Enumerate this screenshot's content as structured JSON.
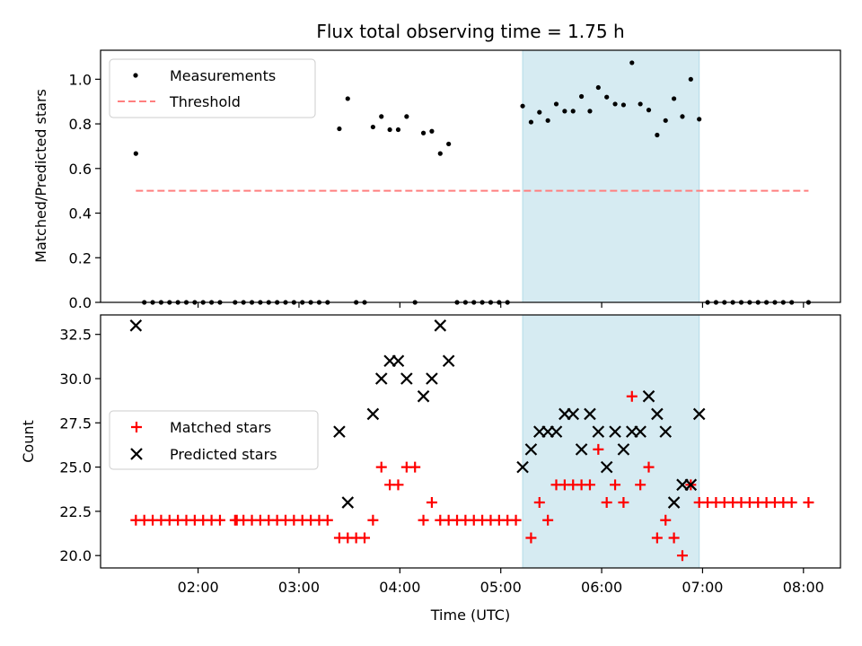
{
  "chart_data": {
    "type": "scatter",
    "title": "Flux total observing time = 1.75 h",
    "xlabel": "Time (UTC)",
    "xlim": [
      "01:02",
      "08:22"
    ],
    "x_ticks": [
      "02:00",
      "03:00",
      "04:00",
      "05:00",
      "06:00",
      "07:00",
      "08:00"
    ],
    "shaded_interval": {
      "start": "05:13",
      "end": "06:58",
      "color": "#add8e6"
    },
    "panels": [
      {
        "ylabel": "Matched/Predicted stars",
        "ylim": [
          0,
          1.13
        ],
        "y_ticks": [
          "0.0",
          "0.2",
          "0.4",
          "0.6",
          "0.8",
          "1.0"
        ],
        "legend_position": "top-left",
        "series": [
          {
            "name": "Measurements",
            "marker": "dot",
            "color": "#000000",
            "points": [
              [
                "01:23",
                0.667
              ],
              [
                "01:28",
                0
              ],
              [
                "01:33",
                0
              ],
              [
                "01:38",
                0
              ],
              [
                "01:43",
                0
              ],
              [
                "01:48",
                0
              ],
              [
                "01:53",
                0
              ],
              [
                "01:58",
                0
              ],
              [
                "02:03",
                0
              ],
              [
                "02:08",
                0
              ],
              [
                "02:13",
                0
              ],
              [
                "02:22",
                0
              ],
              [
                "02:27",
                0
              ],
              [
                "02:32",
                0
              ],
              [
                "02:37",
                0
              ],
              [
                "02:42",
                0
              ],
              [
                "02:47",
                0
              ],
              [
                "02:52",
                0
              ],
              [
                "02:57",
                0
              ],
              [
                "03:02",
                0
              ],
              [
                "03:07",
                0
              ],
              [
                "03:12",
                0
              ],
              [
                "03:17",
                0
              ],
              [
                "03:24",
                0.778
              ],
              [
                "03:29",
                0.913
              ],
              [
                "03:34",
                0
              ],
              [
                "03:39",
                0
              ],
              [
                "03:44",
                0.786
              ],
              [
                "03:49",
                0.833
              ],
              [
                "03:54",
                0.774
              ],
              [
                "03:59",
                0.774
              ],
              [
                "04:04",
                0.833
              ],
              [
                "04:09",
                0
              ],
              [
                "04:14",
                0.759
              ],
              [
                "04:19",
                0.767
              ],
              [
                "04:24",
                0.667
              ],
              [
                "04:29",
                0.71
              ],
              [
                "04:34",
                0
              ],
              [
                "04:39",
                0
              ],
              [
                "04:44",
                0
              ],
              [
                "04:49",
                0
              ],
              [
                "04:54",
                0
              ],
              [
                "04:59",
                0
              ],
              [
                "05:04",
                0
              ],
              [
                "05:13",
                0.88
              ],
              [
                "05:18",
                0.808
              ],
              [
                "05:23",
                0.852
              ],
              [
                "05:28",
                0.815
              ],
              [
                "05:33",
                0.889
              ],
              [
                "05:38",
                0.857
              ],
              [
                "05:43",
                0.857
              ],
              [
                "05:48",
                0.923
              ],
              [
                "05:53",
                0.857
              ],
              [
                "05:58",
                0.963
              ],
              [
                "06:03",
                0.92
              ],
              [
                "06:08",
                0.889
              ],
              [
                "06:13",
                0.885
              ],
              [
                "06:18",
                1.074
              ],
              [
                "06:23",
                0.889
              ],
              [
                "06:28",
                0.862
              ],
              [
                "06:33",
                0.75
              ],
              [
                "06:38",
                0.815
              ],
              [
                "06:43",
                0.913
              ],
              [
                "06:48",
                0.833
              ],
              [
                "06:53",
                1.0
              ],
              [
                "06:58",
                0.821
              ],
              [
                "07:03",
                0
              ],
              [
                "07:08",
                0
              ],
              [
                "07:13",
                0
              ],
              [
                "07:18",
                0
              ],
              [
                "07:23",
                0
              ],
              [
                "07:28",
                0
              ],
              [
                "07:33",
                0
              ],
              [
                "07:38",
                0
              ],
              [
                "07:43",
                0
              ],
              [
                "07:48",
                0
              ],
              [
                "07:53",
                0
              ],
              [
                "08:03",
                0
              ]
            ]
          },
          {
            "name": "Threshold",
            "marker": "dashed-line",
            "color": "#ff7f7f",
            "points": [
              [
                "01:23",
                0.5
              ],
              [
                "08:03",
                0.5
              ]
            ]
          }
        ]
      },
      {
        "ylabel": "Count",
        "ylim": [
          19.3,
          33.6
        ],
        "y_ticks": [
          "20.0",
          "22.5",
          "25.0",
          "27.5",
          "30.0",
          "32.5"
        ],
        "legend_position": "center-left",
        "series": [
          {
            "name": "Matched stars",
            "marker": "plus",
            "color": "#ff0000",
            "points": [
              [
                "01:23",
                22
              ],
              [
                "01:28",
                22
              ],
              [
                "01:33",
                22
              ],
              [
                "01:38",
                22
              ],
              [
                "01:43",
                22
              ],
              [
                "01:48",
                22
              ],
              [
                "01:53",
                22
              ],
              [
                "01:58",
                22
              ],
              [
                "02:03",
                22
              ],
              [
                "02:08",
                22
              ],
              [
                "02:13",
                22
              ],
              [
                "02:22",
                22
              ],
              [
                "02:23",
                22
              ],
              [
                "02:27",
                22
              ],
              [
                "02:32",
                22
              ],
              [
                "02:37",
                22
              ],
              [
                "02:42",
                22
              ],
              [
                "02:47",
                22
              ],
              [
                "02:52",
                22
              ],
              [
                "02:57",
                22
              ],
              [
                "03:02",
                22
              ],
              [
                "03:07",
                22
              ],
              [
                "03:12",
                22
              ],
              [
                "03:17",
                22
              ],
              [
                "03:24",
                21
              ],
              [
                "03:29",
                21
              ],
              [
                "03:34",
                21
              ],
              [
                "03:39",
                21
              ],
              [
                "03:44",
                22
              ],
              [
                "03:49",
                25
              ],
              [
                "03:54",
                24
              ],
              [
                "03:59",
                24
              ],
              [
                "04:04",
                25
              ],
              [
                "04:09",
                25
              ],
              [
                "04:14",
                22
              ],
              [
                "04:19",
                23
              ],
              [
                "04:24",
                22
              ],
              [
                "04:29",
                22
              ],
              [
                "04:34",
                22
              ],
              [
                "04:39",
                22
              ],
              [
                "04:44",
                22
              ],
              [
                "04:49",
                22
              ],
              [
                "04:54",
                22
              ],
              [
                "04:59",
                22
              ],
              [
                "05:04",
                22
              ],
              [
                "05:09",
                22
              ],
              [
                "05:18",
                21
              ],
              [
                "05:23",
                23
              ],
              [
                "05:28",
                22
              ],
              [
                "05:33",
                24
              ],
              [
                "05:38",
                24
              ],
              [
                "05:43",
                24
              ],
              [
                "05:48",
                24
              ],
              [
                "05:53",
                24
              ],
              [
                "05:58",
                26
              ],
              [
                "06:03",
                23
              ],
              [
                "06:08",
                24
              ],
              [
                "06:13",
                23
              ],
              [
                "06:18",
                29
              ],
              [
                "06:23",
                24
              ],
              [
                "06:28",
                25
              ],
              [
                "06:33",
                21
              ],
              [
                "06:38",
                22
              ],
              [
                "06:43",
                21
              ],
              [
                "06:48",
                20
              ],
              [
                "06:53",
                24
              ],
              [
                "06:58",
                23
              ],
              [
                "07:03",
                23
              ],
              [
                "07:08",
                23
              ],
              [
                "07:13",
                23
              ],
              [
                "07:18",
                23
              ],
              [
                "07:23",
                23
              ],
              [
                "07:28",
                23
              ],
              [
                "07:33",
                23
              ],
              [
                "07:38",
                23
              ],
              [
                "07:43",
                23
              ],
              [
                "07:48",
                23
              ],
              [
                "07:53",
                23
              ],
              [
                "08:03",
                23
              ]
            ]
          },
          {
            "name": "Predicted stars",
            "marker": "x",
            "color": "#000000",
            "points": [
              [
                "01:23",
                33
              ],
              [
                "03:24",
                27
              ],
              [
                "03:29",
                23
              ],
              [
                "03:44",
                28
              ],
              [
                "03:49",
                30
              ],
              [
                "03:54",
                31
              ],
              [
                "03:59",
                31
              ],
              [
                "04:04",
                30
              ],
              [
                "04:14",
                29
              ],
              [
                "04:19",
                30
              ],
              [
                "04:24",
                33
              ],
              [
                "04:29",
                31
              ],
              [
                "05:13",
                25
              ],
              [
                "05:18",
                26
              ],
              [
                "05:23",
                27
              ],
              [
                "05:28",
                27
              ],
              [
                "05:33",
                27
              ],
              [
                "05:38",
                28
              ],
              [
                "05:43",
                28
              ],
              [
                "05:48",
                26
              ],
              [
                "05:53",
                28
              ],
              [
                "05:58",
                27
              ],
              [
                "06:03",
                25
              ],
              [
                "06:08",
                27
              ],
              [
                "06:13",
                26
              ],
              [
                "06:18",
                27
              ],
              [
                "06:23",
                27
              ],
              [
                "06:28",
                29
              ],
              [
                "06:33",
                28
              ],
              [
                "06:38",
                27
              ],
              [
                "06:43",
                23
              ],
              [
                "06:48",
                24
              ],
              [
                "06:53",
                24
              ],
              [
                "06:58",
                28
              ]
            ]
          }
        ]
      }
    ]
  }
}
